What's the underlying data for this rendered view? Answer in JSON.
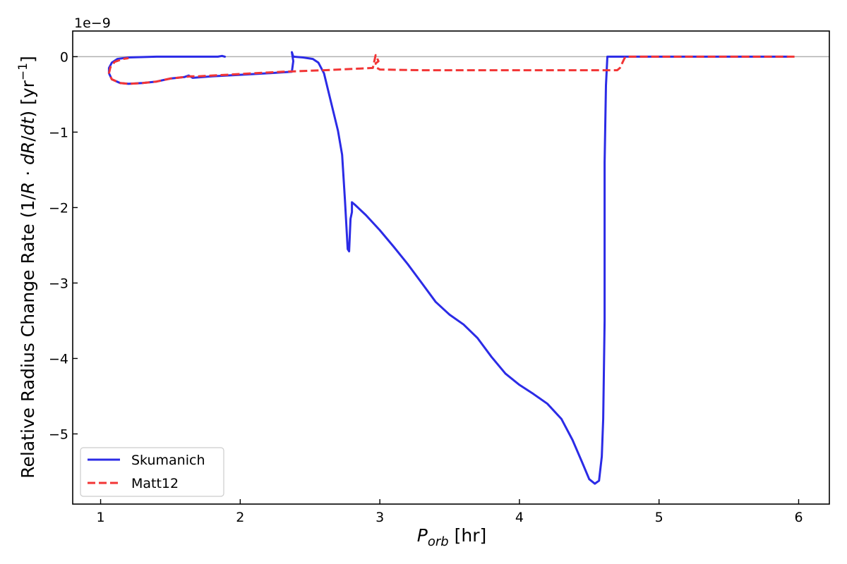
{
  "chart_data": {
    "type": "line",
    "title": "",
    "xlabel": "P_orb [hr]",
    "xlabel_parts": {
      "var": "P",
      "sub": "orb",
      "unit": " [hr]"
    },
    "ylabel": "Relative Radius Change Rate  (1/R · dR/dt) [yr⁻¹]",
    "ylabel_parts": {
      "prefix": "Relative Radius Change Rate  (1/",
      "R1": "R",
      "mid": " · ",
      "d1": "dR",
      "slash": "/",
      "d2": "dt",
      "suffix": ") [yr",
      "sup": "−1",
      "end": "]"
    },
    "y_offset_text": "1e−9",
    "xlim": [
      0.8,
      6.22
    ],
    "ylim": [
      -5.93,
      0.34
    ],
    "y_scale_factor": 1e-09,
    "xticks": [
      1,
      2,
      3,
      4,
      5,
      6
    ],
    "xtick_labels": [
      "1",
      "2",
      "3",
      "4",
      "5",
      "6"
    ],
    "yticks": [
      0,
      -1,
      -2,
      -3,
      -4,
      -5
    ],
    "ytick_labels": [
      "0",
      "−1",
      "−2",
      "−3",
      "−4",
      "−5"
    ],
    "zero_line": true,
    "grid": false,
    "legend_position": "lower-left",
    "series": [
      {
        "name": "Skumanich",
        "color": "#2b2be6",
        "dash": "solid",
        "points": [
          [
            1.89,
            0.0
          ],
          [
            1.87,
            0.01
          ],
          [
            1.84,
            0.0
          ],
          [
            1.6,
            0.0
          ],
          [
            1.4,
            0.0
          ],
          [
            1.2,
            -0.01
          ],
          [
            1.12,
            -0.03
          ],
          [
            1.08,
            -0.08
          ],
          [
            1.06,
            -0.15
          ],
          [
            1.06,
            -0.22
          ],
          [
            1.08,
            -0.3
          ],
          [
            1.14,
            -0.35
          ],
          [
            1.2,
            -0.36
          ],
          [
            1.3,
            -0.35
          ],
          [
            1.4,
            -0.33
          ],
          [
            1.5,
            -0.29
          ],
          [
            1.6,
            -0.27
          ],
          [
            1.63,
            -0.25
          ],
          [
            1.66,
            -0.28
          ],
          [
            1.8,
            -0.26
          ],
          [
            2.0,
            -0.24
          ],
          [
            2.2,
            -0.22
          ],
          [
            2.37,
            -0.2
          ],
          [
            2.38,
            -0.06
          ],
          [
            2.37,
            0.06
          ],
          [
            2.38,
            0.0
          ],
          [
            2.45,
            -0.01
          ],
          [
            2.52,
            -0.03
          ],
          [
            2.56,
            -0.08
          ],
          [
            2.6,
            -0.22
          ],
          [
            2.7,
            -0.98
          ],
          [
            2.73,
            -1.3
          ],
          [
            2.75,
            -1.9
          ],
          [
            2.77,
            -2.55
          ],
          [
            2.78,
            -2.58
          ],
          [
            2.79,
            -2.15
          ],
          [
            2.8,
            -2.06
          ],
          [
            2.8,
            -1.93
          ],
          [
            2.82,
            -1.96
          ],
          [
            2.9,
            -2.1
          ],
          [
            3.0,
            -2.3
          ],
          [
            3.1,
            -2.52
          ],
          [
            3.2,
            -2.75
          ],
          [
            3.3,
            -3.0
          ],
          [
            3.4,
            -3.25
          ],
          [
            3.5,
            -3.42
          ],
          [
            3.6,
            -3.55
          ],
          [
            3.7,
            -3.73
          ],
          [
            3.8,
            -3.98
          ],
          [
            3.9,
            -4.2
          ],
          [
            4.0,
            -4.35
          ],
          [
            4.1,
            -4.47
          ],
          [
            4.2,
            -4.6
          ],
          [
            4.3,
            -4.8
          ],
          [
            4.38,
            -5.08
          ],
          [
            4.45,
            -5.38
          ],
          [
            4.5,
            -5.6
          ],
          [
            4.54,
            -5.66
          ],
          [
            4.57,
            -5.62
          ],
          [
            4.59,
            -5.3
          ],
          [
            4.6,
            -4.8
          ],
          [
            4.61,
            -3.5
          ],
          [
            4.61,
            -1.4
          ],
          [
            4.62,
            -0.38
          ],
          [
            4.63,
            0.0
          ],
          [
            5.0,
            0.0
          ],
          [
            5.5,
            0.0
          ],
          [
            5.92,
            0.0
          ]
        ]
      },
      {
        "name": "Matt12",
        "color": "#f23535",
        "dash": "dashed",
        "points": [
          [
            5.97,
            0.0
          ],
          [
            5.5,
            0.0
          ],
          [
            5.0,
            0.0
          ],
          [
            4.76,
            0.0
          ],
          [
            4.75,
            -0.03
          ],
          [
            4.72,
            -0.15
          ],
          [
            4.7,
            -0.18
          ],
          [
            4.3,
            -0.18
          ],
          [
            3.8,
            -0.18
          ],
          [
            3.3,
            -0.18
          ],
          [
            3.0,
            -0.17
          ],
          [
            2.98,
            -0.15
          ],
          [
            2.97,
            -0.09
          ],
          [
            2.99,
            -0.06
          ],
          [
            2.97,
            0.02
          ],
          [
            2.95,
            -0.15
          ],
          [
            2.6,
            -0.18
          ],
          [
            2.3,
            -0.2
          ],
          [
            2.1,
            -0.22
          ],
          [
            1.9,
            -0.24
          ],
          [
            1.7,
            -0.26
          ],
          [
            1.65,
            -0.26
          ],
          [
            1.5,
            -0.29
          ],
          [
            1.4,
            -0.33
          ],
          [
            1.3,
            -0.35
          ],
          [
            1.2,
            -0.36
          ],
          [
            1.14,
            -0.35
          ],
          [
            1.08,
            -0.3
          ],
          [
            1.06,
            -0.22
          ],
          [
            1.07,
            -0.14
          ],
          [
            1.1,
            -0.07
          ],
          [
            1.16,
            -0.03
          ],
          [
            1.2,
            -0.02
          ]
        ]
      }
    ]
  }
}
